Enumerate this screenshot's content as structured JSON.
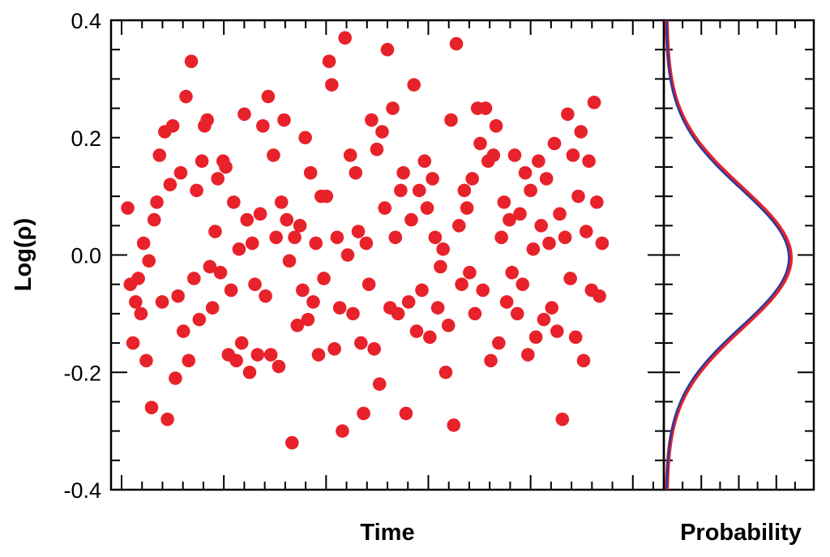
{
  "chart_data": {
    "type": "scatter",
    "panels": [
      {
        "name": "time-series",
        "xlabel": "Time",
        "ylabel": "Log(ρ)",
        "ylim": [
          -0.4,
          0.4
        ],
        "yticks": [
          -0.4,
          -0.2,
          0.0,
          0.2,
          0.4
        ],
        "ytick_labels": [
          "-0.4",
          "-0.2",
          "0.0",
          "0.2",
          "0.4"
        ],
        "xlim": [
          0,
          100
        ],
        "grid": false,
        "series": [
          {
            "color": "#e8222a",
            "points": [
              [
                1,
                0.08
              ],
              [
                1.5,
                -0.05
              ],
              [
                2,
                -0.15
              ],
              [
                2.5,
                -0.08
              ],
              [
                3,
                -0.04
              ],
              [
                3.5,
                -0.1
              ],
              [
                4,
                0.02
              ],
              [
                4.5,
                -0.18
              ],
              [
                5,
                -0.01
              ],
              [
                5.5,
                -0.26
              ],
              [
                6,
                0.06
              ],
              [
                6.5,
                0.09
              ],
              [
                7,
                0.17
              ],
              [
                7.5,
                -0.08
              ],
              [
                8,
                0.21
              ],
              [
                8.5,
                -0.28
              ],
              [
                9,
                0.12
              ],
              [
                9.5,
                0.22
              ],
              [
                10,
                -0.21
              ],
              [
                10.5,
                -0.07
              ],
              [
                11,
                0.14
              ],
              [
                11.5,
                -0.13
              ],
              [
                12,
                0.27
              ],
              [
                12.5,
                -0.18
              ],
              [
                13,
                0.33
              ],
              [
                13.5,
                -0.04
              ],
              [
                14,
                0.11
              ],
              [
                14.5,
                -0.11
              ],
              [
                15,
                0.16
              ],
              [
                15.5,
                0.22
              ],
              [
                16,
                0.23
              ],
              [
                16.5,
                -0.02
              ],
              [
                17,
                -0.09
              ],
              [
                17.5,
                0.04
              ],
              [
                18,
                0.13
              ],
              [
                18.5,
                -0.03
              ],
              [
                19,
                0.16
              ],
              [
                19.5,
                0.15
              ],
              [
                20,
                -0.17
              ],
              [
                20.5,
                -0.06
              ],
              [
                21,
                0.09
              ],
              [
                21.5,
                -0.18
              ],
              [
                22,
                0.01
              ],
              [
                22.5,
                -0.15
              ],
              [
                23,
                0.24
              ],
              [
                23.5,
                0.06
              ],
              [
                24,
                -0.2
              ],
              [
                24.5,
                0.02
              ],
              [
                25,
                -0.05
              ],
              [
                25.5,
                -0.17
              ],
              [
                26,
                0.07
              ],
              [
                26.5,
                0.22
              ],
              [
                27,
                -0.07
              ],
              [
                27.5,
                0.27
              ],
              [
                28,
                -0.17
              ],
              [
                28.5,
                0.17
              ],
              [
                29,
                0.03
              ],
              [
                29.5,
                -0.19
              ],
              [
                30,
                0.09
              ],
              [
                30.5,
                0.23
              ],
              [
                31,
                0.06
              ],
              [
                31.5,
                -0.01
              ],
              [
                32,
                -0.32
              ],
              [
                32.5,
                0.03
              ],
              [
                33,
                -0.12
              ],
              [
                33.5,
                0.05
              ],
              [
                34,
                -0.06
              ],
              [
                34.5,
                0.2
              ],
              [
                35,
                -0.11
              ],
              [
                35.5,
                0.14
              ],
              [
                36,
                -0.08
              ],
              [
                36.5,
                0.02
              ],
              [
                37,
                -0.17
              ],
              [
                37.5,
                0.1
              ],
              [
                38,
                -0.04
              ],
              [
                38.5,
                0.1
              ],
              [
                39,
                0.33
              ],
              [
                39.5,
                0.29
              ],
              [
                40,
                -0.16
              ],
              [
                40.5,
                0.03
              ],
              [
                41,
                -0.09
              ],
              [
                41.5,
                -0.3
              ],
              [
                42,
                0.37
              ],
              [
                42.5,
                0.0
              ],
              [
                43,
                0.17
              ],
              [
                43.5,
                -0.1
              ],
              [
                44,
                0.14
              ],
              [
                44.5,
                0.04
              ],
              [
                45,
                -0.15
              ],
              [
                45.5,
                -0.27
              ],
              [
                46,
                0.02
              ],
              [
                46.5,
                -0.05
              ],
              [
                47,
                0.23
              ],
              [
                47.5,
                -0.16
              ],
              [
                48,
                0.18
              ],
              [
                48.5,
                -0.22
              ],
              [
                49,
                0.21
              ],
              [
                49.5,
                0.08
              ],
              [
                50,
                0.35
              ],
              [
                50.5,
                -0.09
              ],
              [
                51,
                0.25
              ],
              [
                51.5,
                0.03
              ],
              [
                52,
                -0.1
              ],
              [
                52.5,
                0.11
              ],
              [
                53,
                0.14
              ],
              [
                53.5,
                -0.27
              ],
              [
                54,
                -0.08
              ],
              [
                54.5,
                0.06
              ],
              [
                55,
                0.29
              ],
              [
                55.5,
                -0.13
              ],
              [
                56,
                0.11
              ],
              [
                56.5,
                -0.06
              ],
              [
                57,
                0.16
              ],
              [
                57.5,
                0.08
              ],
              [
                58,
                -0.14
              ],
              [
                58.5,
                0.13
              ],
              [
                59,
                0.03
              ],
              [
                59.5,
                -0.09
              ],
              [
                60,
                -0.02
              ],
              [
                60.5,
                0.01
              ],
              [
                61,
                -0.2
              ],
              [
                61.5,
                -0.12
              ],
              [
                62,
                0.23
              ],
              [
                62.5,
                -0.29
              ],
              [
                63,
                0.36
              ],
              [
                63.5,
                0.05
              ],
              [
                64,
                -0.05
              ],
              [
                64.5,
                0.11
              ],
              [
                65,
                0.08
              ],
              [
                65.5,
                -0.03
              ],
              [
                66,
                0.13
              ],
              [
                66.5,
                -0.1
              ],
              [
                67,
                0.25
              ],
              [
                67.5,
                0.19
              ],
              [
                68,
                -0.06
              ],
              [
                68.5,
                0.25
              ],
              [
                69,
                0.16
              ],
              [
                69.5,
                -0.18
              ],
              [
                70,
                0.17
              ],
              [
                70.5,
                0.22
              ],
              [
                71,
                -0.15
              ],
              [
                71.5,
                0.03
              ],
              [
                72,
                0.09
              ],
              [
                72.5,
                -0.08
              ],
              [
                73,
                0.06
              ],
              [
                73.5,
                -0.03
              ],
              [
                74,
                0.17
              ],
              [
                74.5,
                -0.1
              ],
              [
                75,
                0.07
              ],
              [
                75.5,
                -0.05
              ],
              [
                76,
                0.14
              ],
              [
                76.5,
                -0.17
              ],
              [
                77,
                0.11
              ],
              [
                77.5,
                0.01
              ],
              [
                78,
                -0.14
              ],
              [
                78.5,
                0.16
              ],
              [
                79,
                0.05
              ],
              [
                79.5,
                -0.11
              ],
              [
                80,
                0.13
              ],
              [
                80.5,
                0.02
              ],
              [
                81,
                -0.09
              ],
              [
                81.5,
                0.19
              ],
              [
                82,
                -0.13
              ],
              [
                82.5,
                0.07
              ],
              [
                83,
                -0.28
              ],
              [
                83.5,
                0.03
              ],
              [
                84,
                0.24
              ],
              [
                84.5,
                -0.04
              ],
              [
                85,
                0.17
              ],
              [
                85.5,
                -0.14
              ],
              [
                86,
                0.1
              ],
              [
                86.5,
                0.21
              ],
              [
                87,
                -0.18
              ],
              [
                87.5,
                0.04
              ],
              [
                88,
                0.16
              ],
              [
                88.5,
                -0.06
              ],
              [
                89,
                0.26
              ],
              [
                89.5,
                0.09
              ],
              [
                90,
                -0.07
              ],
              [
                90.5,
                0.02
              ]
            ]
          }
        ]
      },
      {
        "name": "probability",
        "type": "line",
        "xlabel": "Probability",
        "ylim": [
          -0.4,
          0.4
        ],
        "series": [
          {
            "color": "#e8222a",
            "mean": -0.005,
            "sigma": 0.12
          },
          {
            "color": "#2b3a9e",
            "mean": -0.005,
            "sigma": 0.118
          }
        ]
      }
    ]
  }
}
